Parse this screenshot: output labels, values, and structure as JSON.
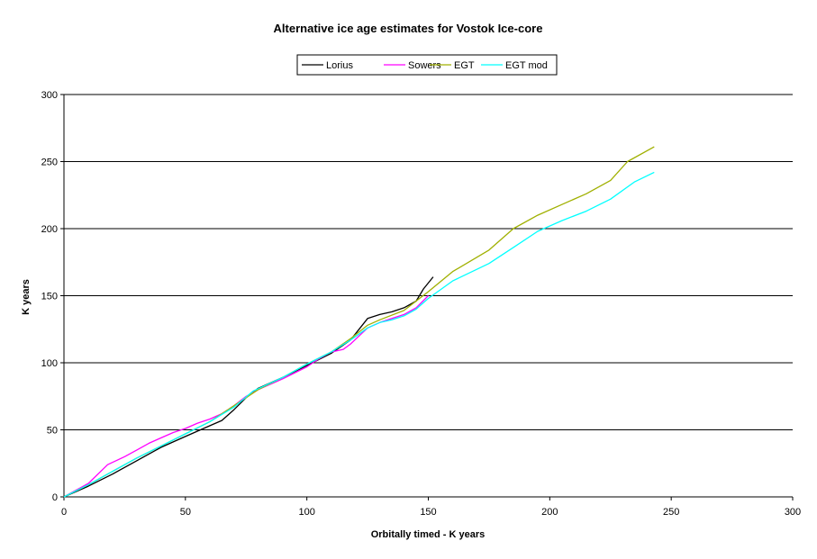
{
  "chart_data": {
    "type": "line",
    "title": "Alternative ice age estimates for Vostok Ice-core",
    "xlabel": "Orbitally timed - K years",
    "ylabel": "K years",
    "xlim": [
      0,
      300
    ],
    "ylim": [
      0,
      300
    ],
    "x_ticks": [
      "0",
      "50",
      "100",
      "150",
      "200",
      "250",
      "300"
    ],
    "y_ticks": [
      "0",
      "50",
      "100",
      "150",
      "200",
      "250",
      "300"
    ],
    "grid": "horizontal",
    "legend_position": "top-center",
    "series": [
      {
        "name": "Lorius",
        "color": "#000000",
        "x": [
          0,
          10,
          20,
          30,
          35,
          40,
          50,
          60,
          65,
          70,
          75,
          80,
          90,
          100,
          110,
          118,
          125,
          130,
          135,
          140,
          145,
          148,
          152
        ],
        "y": [
          0,
          8,
          17,
          27,
          32,
          37,
          45,
          53,
          57,
          65,
          74,
          81,
          89,
          98,
          107,
          117,
          133,
          136,
          138,
          141,
          146,
          155,
          164
        ]
      },
      {
        "name": "Sowers",
        "color": "#ff00ff",
        "x": [
          0,
          10,
          18,
          25,
          30,
          35,
          40,
          45,
          50,
          55,
          60,
          65,
          70,
          75,
          80,
          90,
          100,
          105,
          110,
          115,
          118,
          125,
          130,
          135,
          140,
          145,
          150
        ],
        "y": [
          0,
          10,
          24,
          30,
          35,
          40,
          44,
          48,
          51,
          55,
          58,
          62,
          68,
          75,
          80,
          88,
          97,
          103,
          108,
          110,
          114,
          126,
          130,
          133,
          136,
          141,
          150
        ]
      },
      {
        "name": "EGT",
        "color": "#a0b000",
        "x": [
          0,
          10,
          20,
          30,
          40,
          50,
          60,
          70,
          80,
          90,
          100,
          110,
          118,
          125,
          130,
          140,
          150,
          160,
          175,
          185,
          195,
          205,
          215,
          225,
          232,
          243
        ],
        "y": [
          0,
          9,
          19,
          29,
          38,
          47,
          56,
          68,
          80,
          89,
          99,
          108,
          118,
          128,
          132,
          139,
          153,
          168,
          184,
          200,
          210,
          218,
          226,
          236,
          250,
          261
        ]
      },
      {
        "name": "EGT mod",
        "color": "#00ffff",
        "x": [
          0,
          10,
          20,
          30,
          40,
          50,
          60,
          70,
          78,
          90,
          100,
          110,
          118,
          125,
          130,
          135,
          140,
          145,
          150,
          160,
          175,
          185,
          195,
          205,
          215,
          225,
          235,
          243
        ],
        "y": [
          0,
          9,
          19,
          29,
          38,
          47,
          56,
          67,
          79,
          89,
          99,
          108,
          117,
          126,
          130,
          132,
          135,
          140,
          148,
          161,
          174,
          186,
          198,
          206,
          213,
          222,
          235,
          242
        ]
      }
    ]
  }
}
